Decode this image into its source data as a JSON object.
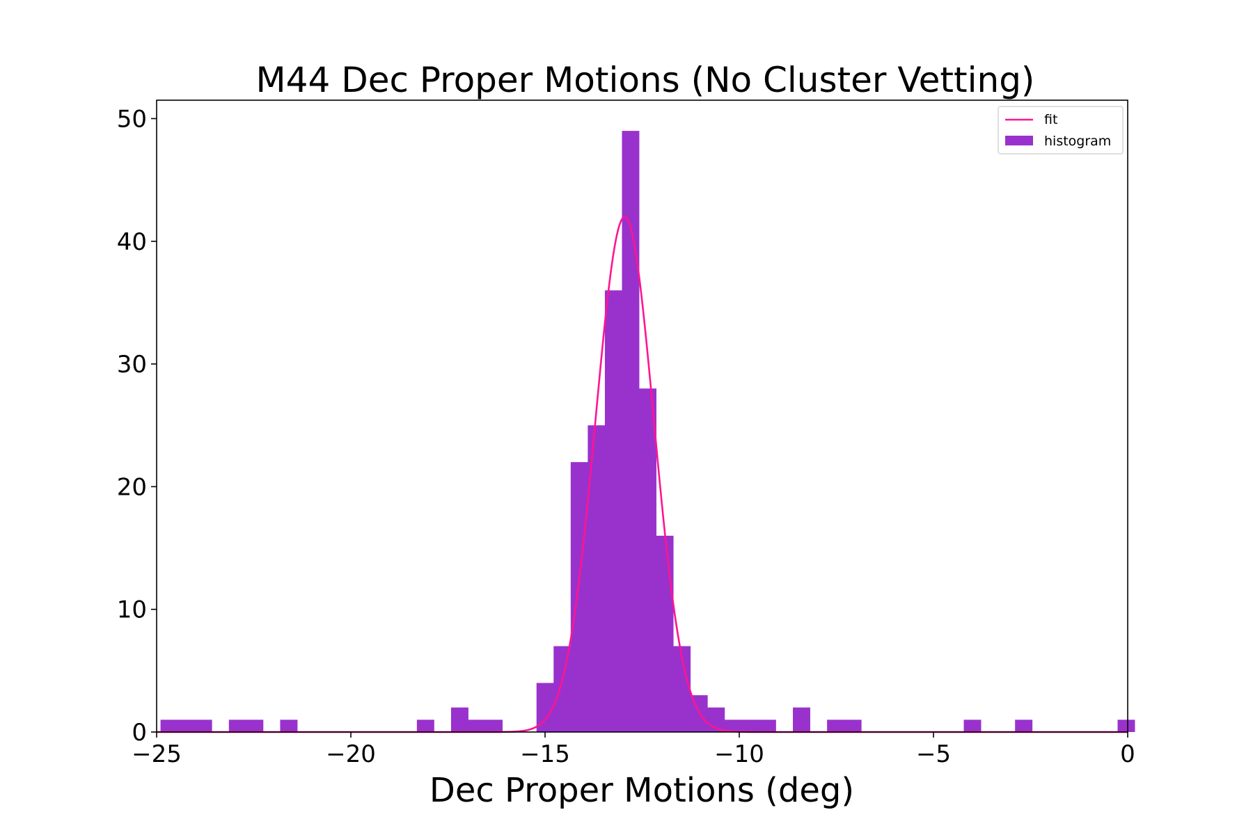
{
  "chart_data": {
    "type": "bar",
    "title": "M44 Dec Proper Motions (No Cluster Vetting)",
    "xlabel": "Dec Proper Motions (deg)",
    "ylabel": "",
    "xlim": [
      -25,
      0
    ],
    "ylim": [
      0,
      51.5
    ],
    "x_ticks": [
      -25,
      -20,
      -15,
      -10,
      -5,
      0
    ],
    "x_tick_labels": [
      "−25",
      "−20",
      "−15",
      "−10",
      "−5",
      "0"
    ],
    "y_ticks": [
      0,
      10,
      20,
      30,
      40,
      50
    ],
    "y_tick_labels": [
      "0",
      "10",
      "20",
      "30",
      "40",
      "50"
    ],
    "grid": false,
    "legend_position": "top-right",
    "colors": {
      "histogram": "#9932cc",
      "fit": "#ff1493"
    },
    "series": [
      {
        "name": "histogram",
        "kind": "bar",
        "bin_edges": [
          -24.9,
          -24.46,
          -24.02,
          -23.58,
          -23.14,
          -22.7,
          -22.26,
          -21.82,
          -21.38,
          -20.94,
          -20.5,
          -20.06,
          -19.62,
          -19.18,
          -18.74,
          -18.3,
          -17.86,
          -17.42,
          -16.98,
          -16.54,
          -16.1,
          -15.66,
          -15.22,
          -14.78,
          -14.34,
          -13.9,
          -13.46,
          -13.02,
          -12.58,
          -12.14,
          -11.7,
          -11.26,
          -10.82,
          -10.38,
          -9.94,
          -9.5,
          -9.06,
          -8.62,
          -8.18,
          -7.74,
          -7.3,
          -6.86,
          -6.42,
          -5.98,
          -5.54,
          -5.1,
          -4.66,
          -4.22,
          -3.78,
          -3.34,
          -2.9,
          -2.46,
          -2.02,
          -1.58,
          -1.14,
          -0.7,
          -0.26,
          0.18
        ],
        "counts": [
          1,
          1,
          1,
          0,
          1,
          1,
          0,
          1,
          0,
          0,
          0,
          0,
          0,
          0,
          0,
          1,
          0,
          2,
          1,
          1,
          0,
          0,
          4,
          7,
          22,
          25,
          36,
          49,
          28,
          16,
          7,
          3,
          2,
          1,
          1,
          1,
          0,
          2,
          0,
          1,
          1,
          0,
          0,
          0,
          0,
          0,
          0,
          1,
          0,
          0,
          1,
          0,
          0,
          0,
          0,
          0,
          1
        ]
      },
      {
        "name": "fit",
        "kind": "line",
        "model": "gaussian",
        "amplitude": 42,
        "mean": -12.95,
        "sigma": 0.75
      }
    ]
  }
}
